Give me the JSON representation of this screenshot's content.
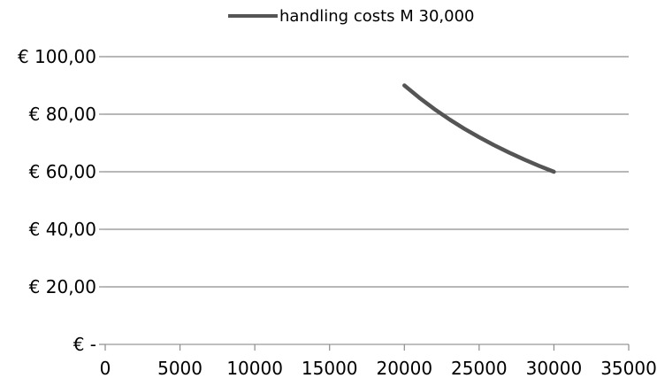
{
  "chart_data": {
    "type": "line",
    "title": "",
    "xlabel": "",
    "ylabel": "",
    "xlim": [
      0,
      35000
    ],
    "ylim": [
      0,
      100
    ],
    "x_ticks": [
      0,
      5000,
      10000,
      15000,
      20000,
      25000,
      30000,
      35000
    ],
    "x_tick_labels": [
      "0",
      "5000",
      "10000",
      "15000",
      "20000",
      "25000",
      "30000",
      "35000"
    ],
    "y_ticks": [
      0,
      20,
      40,
      60,
      80,
      100
    ],
    "y_tick_labels": [
      "€ -",
      "€ 20,00",
      "€ 40,00",
      "€ 60,00",
      "€ 80,00",
      "€ 100,00"
    ],
    "grid": "horizontal",
    "legend": {
      "position": "top-center",
      "entries": [
        "handling costs M 30,000"
      ]
    },
    "series": [
      {
        "name": "handling costs M 30,000",
        "color": "#555555",
        "x": [
          20000,
          21000,
          22000,
          23000,
          24000,
          25000,
          26000,
          27000,
          28000,
          29000,
          30000
        ],
        "y": [
          90.0,
          85.71,
          81.82,
          78.26,
          75.0,
          72.0,
          69.23,
          66.67,
          64.29,
          62.07,
          60.0
        ]
      }
    ]
  }
}
